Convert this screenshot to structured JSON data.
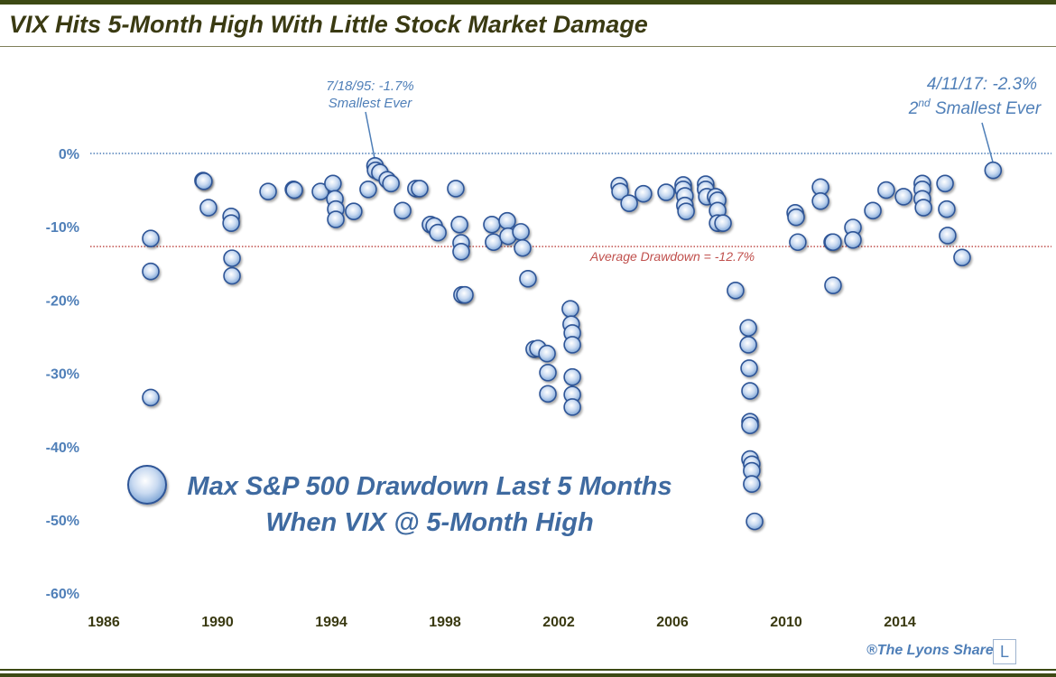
{
  "title": "VIX Hits 5-Month High With Little Stock Market Damage",
  "watermark": "®The Lyons Share",
  "watermark_logo": "L",
  "chart_data": {
    "type": "scatter",
    "title": "VIX Hits 5-Month High With Little Stock Market Damage",
    "legend": {
      "label_line1": "Max S&P 500 Drawdown Last 5 Months",
      "label_line2": "When VIX @ 5-Month High",
      "placement": "bottom-left"
    },
    "xlim": [
      1986,
      2018
    ],
    "ylim": [
      -60,
      0
    ],
    "x_ticks": [
      1986,
      1990,
      1994,
      1998,
      2002,
      2006,
      2010,
      2014
    ],
    "x_tick_labels": [
      "1986",
      "1990",
      "1994",
      "1998",
      "2002",
      "2006",
      "2010",
      "2014"
    ],
    "y_ticks": [
      0,
      -10,
      -20,
      -30,
      -40,
      -50,
      -60
    ],
    "y_tick_labels": [
      "0%",
      "-10%",
      "-20%",
      "-30%",
      "-40%",
      "-50%",
      "-60%"
    ],
    "reference_lines": [
      {
        "value": 0,
        "color": "#4f7fb8",
        "style": "dotted"
      },
      {
        "value": -12.7,
        "color": "#c0504d",
        "style": "dotted",
        "label": "Average Drawdown = -12.7%"
      }
    ],
    "annotations": [
      {
        "x": 1995.54,
        "y": -1.7,
        "line1": "7/18/95: -1.7%",
        "line2": "Smallest Ever"
      },
      {
        "x": 2017.28,
        "y": -2.3,
        "line1": "4/11/17: -2.3%",
        "line2_pre": "2",
        "line2_sup": "nd",
        "line2_post": " Smallest Ever"
      }
    ],
    "marker_color": "#8fb4e3",
    "marker_edge": "#2f5597",
    "points": [
      [
        1987.65,
        -11.6
      ],
      [
        1987.65,
        -16.1
      ],
      [
        1987.65,
        -33.3
      ],
      [
        1989.49,
        -3.7
      ],
      [
        1989.52,
        -3.8
      ],
      [
        1989.68,
        -7.4
      ],
      [
        1990.48,
        -8.6
      ],
      [
        1990.48,
        -9.5
      ],
      [
        1990.51,
        -14.3
      ],
      [
        1990.51,
        -16.7
      ],
      [
        1991.78,
        -5.2
      ],
      [
        1992.67,
        -4.9
      ],
      [
        1992.7,
        -5.0
      ],
      [
        1993.62,
        -5.2
      ],
      [
        1994.06,
        -4.1
      ],
      [
        1994.13,
        -6.2
      ],
      [
        1994.16,
        -7.6
      ],
      [
        1994.16,
        -9.0
      ],
      [
        1994.79,
        -7.9
      ],
      [
        1995.3,
        -4.9
      ],
      [
        1995.54,
        -1.7
      ],
      [
        1995.56,
        -2.3
      ],
      [
        1995.71,
        -2.6
      ],
      [
        1995.97,
        -3.6
      ],
      [
        1996.1,
        -4.1
      ],
      [
        1996.51,
        -7.8
      ],
      [
        1996.98,
        -4.8
      ],
      [
        1997.11,
        -4.8
      ],
      [
        1997.49,
        -9.7
      ],
      [
        1997.62,
        -9.9
      ],
      [
        1997.75,
        -10.8
      ],
      [
        1998.38,
        -4.8
      ],
      [
        1998.51,
        -9.7
      ],
      [
        1998.57,
        -12.2
      ],
      [
        1998.57,
        -13.4
      ],
      [
        1998.6,
        -19.3
      ],
      [
        1998.7,
        -19.3
      ],
      [
        1999.65,
        -9.7
      ],
      [
        1999.71,
        -12.1
      ],
      [
        2000.19,
        -9.2
      ],
      [
        2000.22,
        -11.3
      ],
      [
        2000.67,
        -10.7
      ],
      [
        2000.73,
        -12.9
      ],
      [
        2000.92,
        -17.1
      ],
      [
        2001.14,
        -26.7
      ],
      [
        2001.27,
        -26.6
      ],
      [
        2001.59,
        -27.3
      ],
      [
        2001.62,
        -29.9
      ],
      [
        2001.62,
        -32.8
      ],
      [
        2002.41,
        -21.2
      ],
      [
        2002.44,
        -23.3
      ],
      [
        2002.48,
        -24.5
      ],
      [
        2002.48,
        -26.1
      ],
      [
        2002.48,
        -30.5
      ],
      [
        2002.48,
        -32.9
      ],
      [
        2002.48,
        -34.6
      ],
      [
        2004.13,
        -4.4
      ],
      [
        2004.16,
        -5.2
      ],
      [
        2004.48,
        -6.8
      ],
      [
        2004.98,
        -5.5
      ],
      [
        2005.78,
        -5.3
      ],
      [
        2006.38,
        -4.3
      ],
      [
        2006.38,
        -4.9
      ],
      [
        2006.44,
        -5.8
      ],
      [
        2006.44,
        -7.1
      ],
      [
        2006.48,
        -7.9
      ],
      [
        2007.17,
        -4.2
      ],
      [
        2007.17,
        -4.9
      ],
      [
        2007.21,
        -5.9
      ],
      [
        2007.52,
        -5.9
      ],
      [
        2007.59,
        -6.4
      ],
      [
        2007.59,
        -7.8
      ],
      [
        2007.59,
        -9.5
      ],
      [
        2007.78,
        -9.5
      ],
      [
        2008.22,
        -18.7
      ],
      [
        2008.67,
        -23.8
      ],
      [
        2008.67,
        -26.1
      ],
      [
        2008.7,
        -29.3
      ],
      [
        2008.73,
        -32.4
      ],
      [
        2008.73,
        -36.6
      ],
      [
        2008.73,
        -37.1
      ],
      [
        2008.73,
        -41.7
      ],
      [
        2008.79,
        -42.4
      ],
      [
        2008.79,
        -43.3
      ],
      [
        2008.79,
        -45.1
      ],
      [
        2008.89,
        -50.2
      ],
      [
        2010.32,
        -8.1
      ],
      [
        2010.35,
        -8.7
      ],
      [
        2010.41,
        -12.1
      ],
      [
        2011.21,
        -4.6
      ],
      [
        2011.21,
        -6.5
      ],
      [
        2011.62,
        -12.1
      ],
      [
        2011.65,
        -12.1
      ],
      [
        2011.65,
        -18.0
      ],
      [
        2012.35,
        -10.1
      ],
      [
        2012.35,
        -11.8
      ],
      [
        2013.05,
        -7.8
      ],
      [
        2013.52,
        -5.0
      ],
      [
        2014.13,
        -5.9
      ],
      [
        2014.79,
        -4.1
      ],
      [
        2014.79,
        -4.9
      ],
      [
        2014.79,
        -6.2
      ],
      [
        2014.83,
        -7.4
      ],
      [
        2015.59,
        -4.1
      ],
      [
        2015.65,
        -7.6
      ],
      [
        2015.68,
        -11.2
      ],
      [
        2016.19,
        -14.2
      ],
      [
        2017.28,
        -2.3
      ]
    ]
  }
}
